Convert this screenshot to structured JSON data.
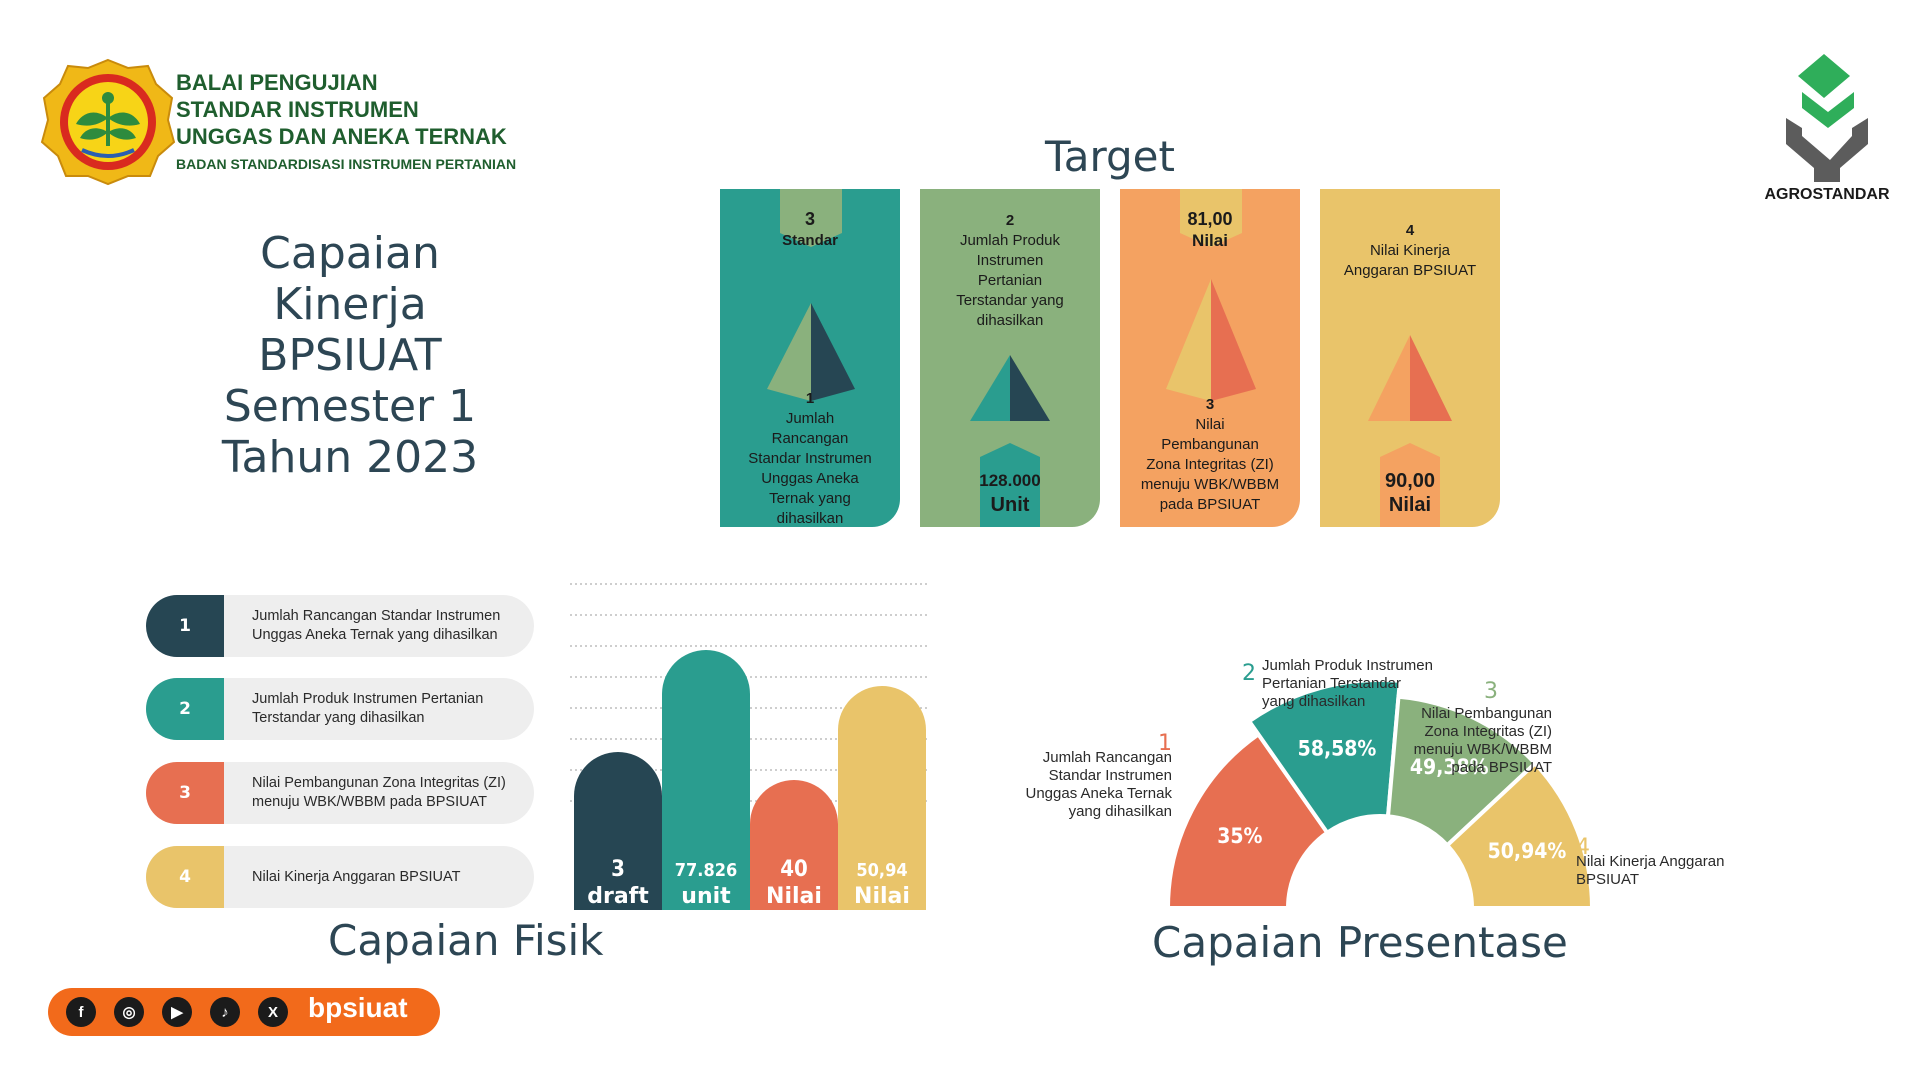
{
  "header": {
    "org_lines": [
      "BALAI PENGUJIAN",
      "STANDAR INSTRUMEN",
      "UNGGAS DAN ANEKA TERNAK",
      "BADAN STANDARDISASI INSTRUMEN PERTANIAN"
    ],
    "brand": "AGROSTANDAR"
  },
  "main_title": [
    "Capaian",
    "Kinerja",
    "BPSIUAT",
    "Semester 1",
    "Tahun 2023"
  ],
  "target": {
    "title": "Target",
    "cards": [
      {
        "top_value": "3",
        "top_unit": "Standar",
        "bottom_number": "1",
        "bottom_text": [
          "Jumlah",
          "Rancangan",
          "Standar Instrumen",
          "Unggas Aneka",
          "Ternak yang",
          "dihasilkan"
        ]
      },
      {
        "top_number": "2",
        "top_text": [
          "Jumlah Produk",
          "Instrumen",
          "Pertanian",
          "Terstandar yang",
          "dihasilkan"
        ],
        "bottom_value": "128.000",
        "bottom_unit": "Unit"
      },
      {
        "top_value": "81,00",
        "top_unit": "Nilai",
        "bottom_number": "3",
        "bottom_text": [
          "Nilai",
          "Pembangunan",
          "Zona Integritas (ZI)",
          "menuju WBK/WBBM",
          "pada BPSIUAT"
        ]
      },
      {
        "top_number": "4",
        "top_text": [
          "Nilai Kinerja",
          "Anggaran BPSIUAT"
        ],
        "bottom_value": "90,00",
        "bottom_unit": "Nilai"
      }
    ]
  },
  "legend": [
    {
      "num": "1",
      "text": "Jumlah Rancangan Standar Instrumen Unggas Aneka Ternak yang dihasilkan"
    },
    {
      "num": "2",
      "text": "Jumlah Produk Instrumen Pertanian Terstandar yang dihasilkan"
    },
    {
      "num": "3",
      "text": "Nilai Pembangunan Zona Integritas (ZI) menuju WBK/WBBM pada BPSIUAT"
    },
    {
      "num": "4",
      "text": "Nilai Kinerja Anggaran BPSIUAT"
    }
  ],
  "fisik_title": "Capaian Fisik",
  "presentase_title": "Capaian Presentase",
  "social_handle": "bpsiuat",
  "colors": {
    "navy": "#264653",
    "teal": "#2a9d8f",
    "sage": "#8ab17d",
    "orange": "#f4a261",
    "coral": "#e76f51",
    "yellow": "#e9c46a"
  },
  "chart_data": [
    {
      "type": "bar",
      "title": "Capaian Fisik",
      "categories": [
        "1",
        "2",
        "3",
        "4"
      ],
      "values": [
        3,
        77.826,
        40,
        50.94
      ],
      "value_labels": [
        [
          "3",
          "draft"
        ],
        [
          "77.826",
          "unit"
        ],
        [
          "40",
          "Nilai"
        ],
        [
          "50,94",
          "Nilai"
        ]
      ],
      "colors": [
        "#264653",
        "#2a9d8f",
        "#e76f51",
        "#e9c46a"
      ]
    },
    {
      "type": "pie",
      "title": "Capaian Presentase",
      "categories": [
        "1",
        "2",
        "3",
        "4"
      ],
      "labels": [
        "Jumlah Rancangan Standar Instrumen Unggas Aneka Ternak yang dihasilkan",
        "Jumlah Produk Instrumen Pertanian Terstandar yang dihasilkan",
        "Nilai Pembangunan Zona Integritas (ZI) menuju WBK/WBBM pada BPSIUAT",
        "Nilai Kinerja Anggaran BPSIUAT"
      ],
      "value_labels": [
        "35%",
        "58,58%",
        "49,38%",
        "50,94%"
      ],
      "values": [
        35,
        58.58,
        49.38,
        50.94
      ],
      "colors": [
        "#e76f51",
        "#2a9d8f",
        "#8ab17d",
        "#e9c46a"
      ]
    }
  ]
}
